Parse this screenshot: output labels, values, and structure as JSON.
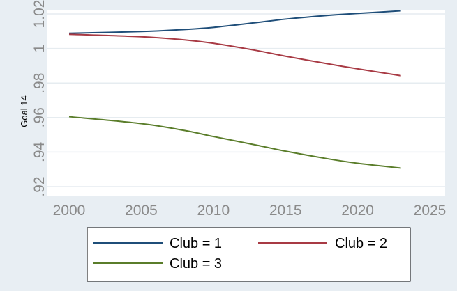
{
  "chart_data": {
    "type": "line",
    "xlabel": "",
    "ylabel": "Goal 14",
    "xlim": [
      2000,
      2025
    ],
    "ylim": [
      0.92,
      1.02
    ],
    "x_ticks": [
      "2000",
      "2005",
      "2010",
      "2015",
      "2020",
      "2025"
    ],
    "y_ticks": [
      "1.02",
      "1",
      ".98",
      ".96",
      ".94",
      ".92"
    ],
    "grid": true,
    "legend_position": "bottom",
    "background_color": "#e8eef3",
    "plot_background_color": "#ffffff",
    "series": [
      {
        "name": "Club = 1",
        "color": "#1f4e79",
        "x": [
          2000,
          2005,
          2008,
          2010,
          2013,
          2015,
          2018,
          2020,
          2023
        ],
        "y": [
          1.0088,
          1.0098,
          1.011,
          1.0122,
          1.015,
          1.017,
          1.0192,
          1.0203,
          1.0218
        ]
      },
      {
        "name": "Club = 2",
        "color": "#a83a44",
        "x": [
          2000,
          2005,
          2008,
          2010,
          2013,
          2015,
          2018,
          2020,
          2023
        ],
        "y": [
          1.0082,
          1.0068,
          1.005,
          1.003,
          0.9988,
          0.9955,
          0.991,
          0.9882,
          0.9842
        ]
      },
      {
        "name": "Club = 3",
        "color": "#5a7d2a",
        "x": [
          2000,
          2005,
          2008,
          2010,
          2013,
          2015,
          2018,
          2020,
          2023
        ],
        "y": [
          0.9605,
          0.9565,
          0.9525,
          0.949,
          0.944,
          0.9405,
          0.936,
          0.9335,
          0.9307
        ]
      }
    ]
  }
}
